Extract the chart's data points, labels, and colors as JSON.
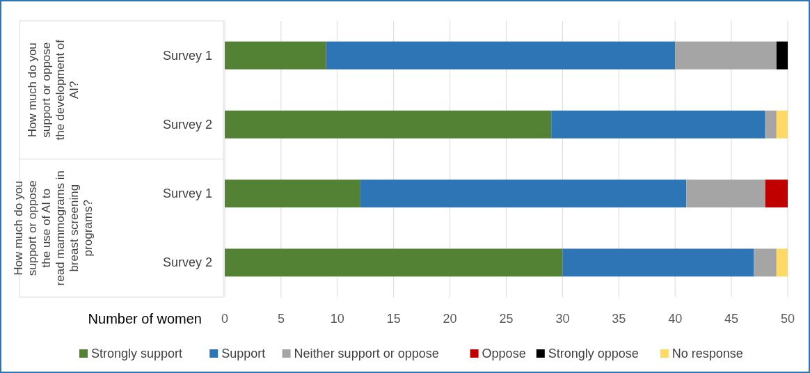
{
  "chart_data": {
    "type": "bar",
    "orientation": "horizontal",
    "stacked": true,
    "categories": [
      "Survey 1",
      "Survey 2",
      "Survey 1",
      "Survey 2"
    ],
    "series": [
      {
        "name": "Strongly support",
        "color": "#548235",
        "values": [
          9,
          29,
          12,
          30
        ]
      },
      {
        "name": "Support",
        "color": "#2e75b6",
        "values": [
          31,
          19,
          29,
          17
        ]
      },
      {
        "name": "Neither support or oppose",
        "color": "#a5a5a5",
        "values": [
          9,
          1,
          7,
          2
        ]
      },
      {
        "name": "Oppose",
        "color": "#c00000",
        "values": [
          null,
          null,
          2,
          null
        ]
      },
      {
        "name": "Strongly oppose",
        "color": "#000000",
        "values": [
          1,
          null,
          null,
          null
        ]
      },
      {
        "name": "No response",
        "color": "#ffd966",
        "values": [
          null,
          1,
          null,
          1
        ]
      }
    ],
    "xlabel": "Number of women",
    "xlim": [
      0,
      50
    ],
    "xticks": [
      0,
      5,
      10,
      15,
      20,
      25,
      30,
      35,
      40,
      45,
      50
    ],
    "grid": "x",
    "legend": "bottom",
    "annotations": [
      "How much do you support or oppose the development of AI?",
      "How much do you support or oppose the use of AI to read mammograms in breast screening programs?"
    ]
  }
}
